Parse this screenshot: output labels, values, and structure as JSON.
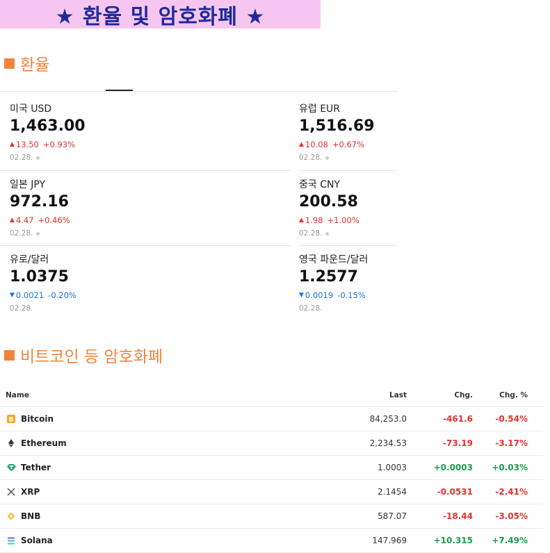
{
  "banner": {
    "text": "★ 환율 및 암호화폐 ★"
  },
  "sections": {
    "fx_title": "환율",
    "crypto_title": "비트코인 등 암호화폐"
  },
  "fx": [
    {
      "name": "미국 USD",
      "value": "1,463.00",
      "dir": "up",
      "change": "13.50",
      "pct": "+0.93%",
      "date": "02.28.",
      "dot": true
    },
    {
      "name": "유럽 EUR",
      "value": "1,516.69",
      "dir": "up",
      "change": "10.08",
      "pct": "+0.67%",
      "date": "02.28.",
      "dot": true
    },
    {
      "name": "일본 JPY",
      "value": "972.16",
      "dir": "up",
      "change": "4.47",
      "pct": "+0.46%",
      "date": "02.28.",
      "dot": true
    },
    {
      "name": "중국 CNY",
      "value": "200.58",
      "dir": "up",
      "change": "1.98",
      "pct": "+1.00%",
      "date": "02.28.",
      "dot": true
    },
    {
      "name": "유로/달러",
      "value": "1.0375",
      "dir": "down",
      "change": "0.0021",
      "pct": "-0.20%",
      "date": "02.28.",
      "dot": false
    },
    {
      "name": "영국 파운드/달러",
      "value": "1.2577",
      "dir": "down",
      "change": "0.0019",
      "pct": "-0.15%",
      "date": "02.28.",
      "dot": false
    }
  ],
  "crypto": {
    "headers": {
      "name": "Name",
      "last": "Last",
      "chg": "Chg.",
      "pct": "Chg. %"
    },
    "rows": [
      {
        "icon": "bitcoin-icon",
        "name": "Bitcoin",
        "last": "84,253.0",
        "chg": "-461.6",
        "pct": "-0.54%",
        "dir": "neg"
      },
      {
        "icon": "ethereum-icon",
        "name": "Ethereum",
        "last": "2,234.53",
        "chg": "-73.19",
        "pct": "-3.17%",
        "dir": "neg"
      },
      {
        "icon": "tether-icon",
        "name": "Tether",
        "last": "1.0003",
        "chg": "+0.0003",
        "pct": "+0.03%",
        "dir": "pos"
      },
      {
        "icon": "xrp-icon",
        "name": "XRP",
        "last": "2.1454",
        "chg": "-0.0531",
        "pct": "-2.41%",
        "dir": "neg"
      },
      {
        "icon": "bnb-icon",
        "name": "BNB",
        "last": "587.07",
        "chg": "-18.44",
        "pct": "-3.05%",
        "dir": "neg"
      },
      {
        "icon": "solana-icon",
        "name": "Solana",
        "last": "147.969",
        "chg": "+10.315",
        "pct": "+7.49%",
        "dir": "pos"
      }
    ]
  },
  "colors": {
    "banner_bg": "#f7c6f0",
    "banner_text": "#1e2a9c",
    "section_accent": "#f0843d",
    "up": "#e2312d",
    "down": "#1a73e8",
    "positive": "#189e4a"
  }
}
